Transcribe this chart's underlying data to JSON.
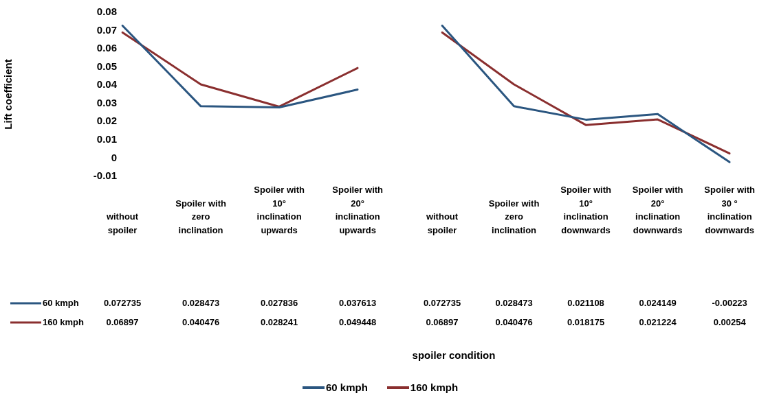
{
  "chart_data": [
    {
      "type": "line",
      "ylabel": "Lift coefficient",
      "categories": [
        "without spoiler",
        "Spoiler with zero inclination",
        "Spoiler with 10° inclination upwards",
        "Spoiler with 20° inclination upwards"
      ],
      "series": [
        {
          "name": "60 kmph",
          "color": "#2b5680",
          "values": [
            0.072735,
            0.028473,
            0.027836,
            0.037613
          ]
        },
        {
          "name": "160 kmph",
          "color": "#8a2f2f",
          "values": [
            0.06897,
            0.040476,
            0.028241,
            0.049448
          ]
        }
      ],
      "ylim": [
        -0.01,
        0.08
      ],
      "yticks": [
        -0.01,
        0,
        0.01,
        0.02,
        0.03,
        0.04,
        0.05,
        0.06,
        0.07,
        0.08
      ],
      "grid": false,
      "legend": "bottom left",
      "marker": "none",
      "data_labels": true
    },
    {
      "type": "line",
      "xlabel": "spoiler condition",
      "categories": [
        "without spoiler",
        "Spoiler with zero inclination",
        "Spoiler with 10° inclination downwards",
        "Spoiler with 20° inclination downwards",
        "Spoiler with 30 ° inclination downwards"
      ],
      "series": [
        {
          "name": "60 kmph",
          "color": "#2b5680",
          "values": [
            0.072735,
            0.028473,
            0.021108,
            0.024149,
            -0.00223
          ]
        },
        {
          "name": "160 kmph",
          "color": "#8a2f2f",
          "values": [
            0.06897,
            0.040476,
            0.018175,
            0.021224,
            0.00254
          ]
        }
      ],
      "ylim": [
        -0.01,
        0.08
      ],
      "yticks": [
        -0.01,
        0,
        0.01,
        0.02,
        0.03,
        0.04,
        0.05,
        0.06,
        0.07,
        0.08
      ],
      "grid": false,
      "tick_labels": "x",
      "legend": "bottom",
      "marker": "none",
      "data_labels": true
    }
  ]
}
